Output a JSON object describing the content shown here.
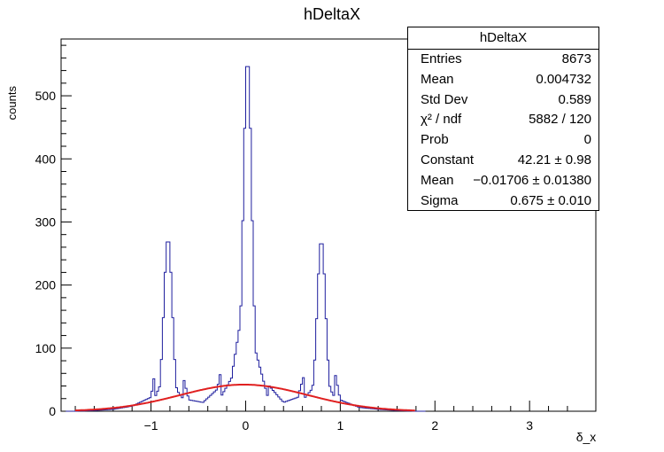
{
  "chart_data": {
    "type": "histogram",
    "title": "hDeltaX",
    "xlabel": "δ_x",
    "ylabel": "counts",
    "xlim": [
      -1.95,
      3.7
    ],
    "ylim": [
      0,
      590
    ],
    "x_ticks": [
      -1,
      0,
      1,
      2,
      3
    ],
    "y_ticks": [
      0,
      100,
      200,
      300,
      400,
      500
    ],
    "bin_width": 0.02,
    "histogram": {
      "color": "#1f1f9e",
      "peaks": [
        {
          "center": -0.82,
          "height": 275,
          "sigma": 0.045
        },
        {
          "center": 0.02,
          "height": 560,
          "sigma": 0.045
        },
        {
          "center": 0.8,
          "height": 272,
          "sigma": 0.045
        }
      ],
      "points": [
        [
          -1.8,
          0
        ],
        [
          -1.6,
          1
        ],
        [
          -1.4,
          3
        ],
        [
          -1.2,
          8
        ],
        [
          -1.0,
          22
        ],
        [
          -0.9,
          120
        ],
        [
          -0.82,
          275
        ],
        [
          -0.75,
          110
        ],
        [
          -0.6,
          18
        ],
        [
          -0.45,
          14
        ],
        [
          -0.3,
          35
        ],
        [
          -0.15,
          150
        ],
        [
          -0.05,
          420
        ],
        [
          0.02,
          560
        ],
        [
          0.1,
          280
        ],
        [
          0.25,
          40
        ],
        [
          0.4,
          14
        ],
        [
          0.55,
          22
        ],
        [
          0.7,
          100
        ],
        [
          0.8,
          272
        ],
        [
          0.9,
          95
        ],
        [
          1.0,
          18
        ],
        [
          1.2,
          6
        ],
        [
          1.4,
          3
        ],
        [
          1.6,
          1
        ],
        [
          1.8,
          0
        ]
      ]
    },
    "fit": {
      "type": "gaussian",
      "color": "#e02020",
      "constant": 42.21,
      "mean": -0.01706,
      "sigma": 0.675
    },
    "stats_box": {
      "title": "hDeltaX",
      "rows": [
        {
          "label": "Entries",
          "value": "8673"
        },
        {
          "label": "Mean",
          "value": "0.004732"
        },
        {
          "label": "Std Dev",
          "value": "0.589"
        },
        {
          "label": "χ² / ndf",
          "value": "5882 / 120"
        },
        {
          "label": "Prob",
          "value": "0"
        },
        {
          "label": "Constant",
          "value": "42.21 ± 0.98"
        },
        {
          "label": "Mean",
          "value": "−0.01706 ± 0.01380"
        },
        {
          "label": "Sigma",
          "value": "0.675 ± 0.010"
        }
      ]
    }
  }
}
